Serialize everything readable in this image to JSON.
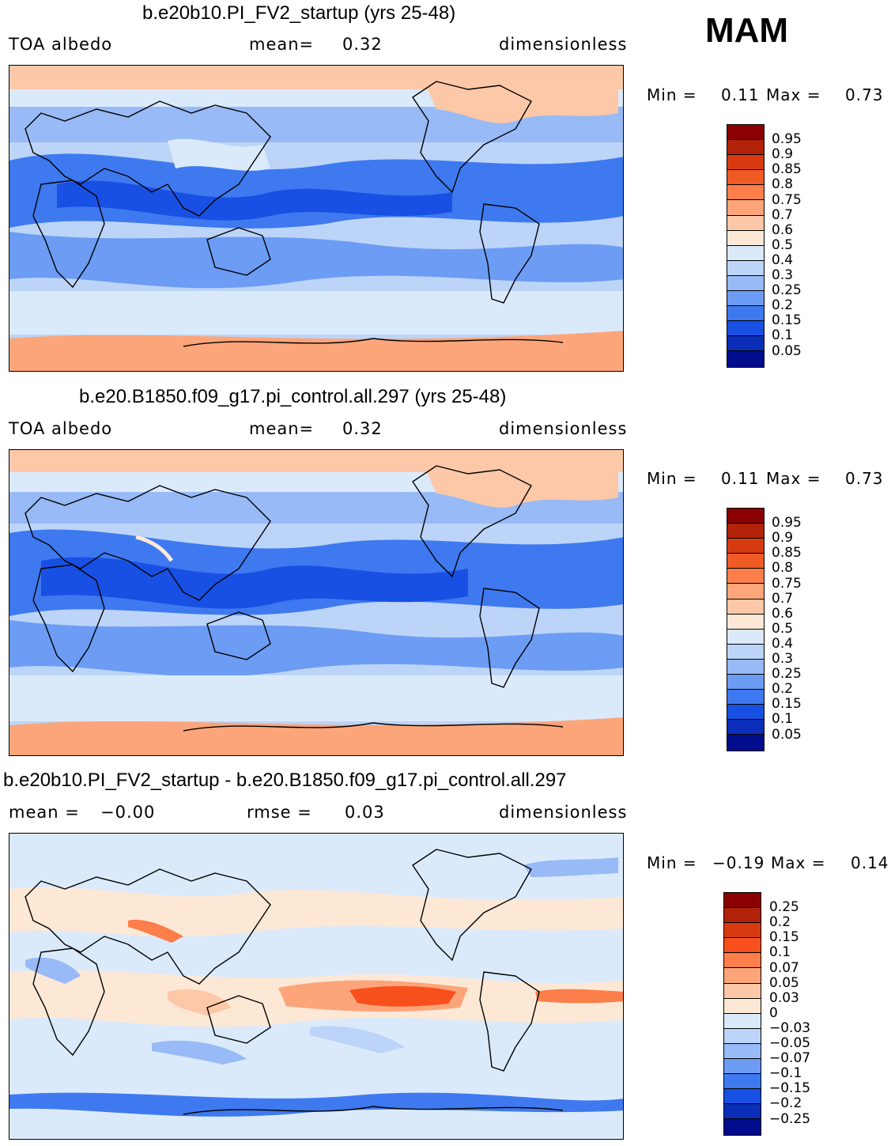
{
  "season": "MAM",
  "panels": [
    {
      "title": "b.e20b10.PI_FV2_startup (yrs 25-48)",
      "left_label": "TOA  albedo",
      "mid_label": "mean=",
      "mid_value": "0.32",
      "right_label": "dimensionless",
      "min_label": "Min  =",
      "min_value": "0.11",
      "max_label": "Max  =",
      "max_value": "0.73"
    },
    {
      "title": "b.e20.B1850.f09_g17.pi_control.all.297 (yrs 25-48)",
      "left_label": "TOA  albedo",
      "mid_label": "mean=",
      "mid_value": "0.32",
      "right_label": "dimensionless",
      "min_label": "Min  =",
      "min_value": "0.11",
      "max_label": "Max  =",
      "max_value": "0.73"
    },
    {
      "title": "b.e20b10.PI_FV2_startup - b.e20.B1850.f09_g17.pi_control.all.297",
      "left_label": "mean  =",
      "left_value": "−0.00",
      "mid_label": "rmse  =",
      "mid_value": "0.03",
      "right_label": "dimensionless",
      "min_label": "Min  =",
      "min_value": "−0.19",
      "max_label": "Max  =",
      "max_value": "0.14"
    }
  ],
  "colorbar_abs": {
    "labels": [
      "0.95",
      "0.9",
      "0.85",
      "0.8",
      "0.75",
      "0.7",
      "0.6",
      "0.5",
      "0.4",
      "0.3",
      "0.25",
      "0.2",
      "0.15",
      "0.1",
      "0.05"
    ],
    "colors": [
      "#8b0000",
      "#b22208",
      "#d83a10",
      "#f05a24",
      "#fc7e4a",
      "#fca57a",
      "#fcc8a8",
      "#fde8d6",
      "#dbeafb",
      "#bcd4f8",
      "#98baf6",
      "#6c9cf4",
      "#3e79f0",
      "#1850e4",
      "#0a2eb8",
      "#000c8c"
    ]
  },
  "colorbar_diff": {
    "labels": [
      "0.25",
      "0.2",
      "0.15",
      "0.1",
      "0.07",
      "0.05",
      "0.03",
      "0",
      "−0.03",
      "−0.05",
      "−0.07",
      "−0.1",
      "−0.15",
      "−0.2",
      "−0.25"
    ],
    "colors": [
      "#8b0000",
      "#b22208",
      "#d83a10",
      "#f8501c",
      "#fc7e4a",
      "#fca57a",
      "#fcc8a8",
      "#fde8d6",
      "#dbeafb",
      "#bcd4f8",
      "#98baf6",
      "#6c9cf4",
      "#3e79f0",
      "#1850e4",
      "#0a2eb8",
      "#000c8c"
    ]
  }
}
